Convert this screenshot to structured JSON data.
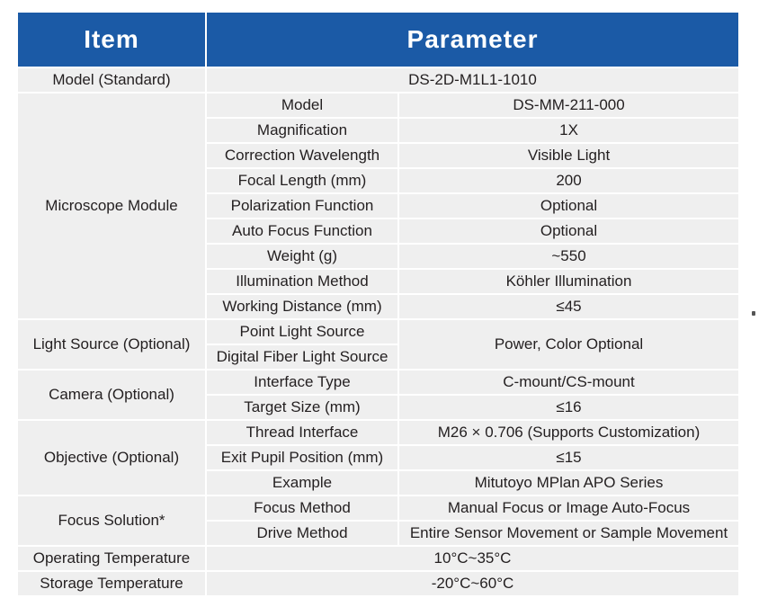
{
  "header": {
    "item": "Item",
    "parameter": "Parameter"
  },
  "rows": {
    "model_standard": {
      "label": "Model (Standard)",
      "value": "DS-2D-M1L1-1010"
    },
    "microscope": {
      "label": "Microscope Module",
      "items": [
        {
          "name": "Model",
          "value": "DS-MM-211-000"
        },
        {
          "name": "Magnification",
          "value": "1X"
        },
        {
          "name": "Correction Wavelength",
          "value": "Visible Light"
        },
        {
          "name": "Focal Length (mm)",
          "value": "200"
        },
        {
          "name": "Polarization Function",
          "value": "Optional"
        },
        {
          "name": "Auto Focus Function",
          "value": "Optional"
        },
        {
          "name": "Weight (g)",
          "value": "~550"
        },
        {
          "name": "Illumination Method",
          "value": "Köhler Illumination"
        },
        {
          "name": "Working Distance (mm)",
          "value": "≤45"
        }
      ]
    },
    "light_source": {
      "label": "Light Source (Optional)",
      "items": [
        {
          "name": "Point Light Source"
        },
        {
          "name": "Digital Fiber Light Source"
        }
      ],
      "value": "Power, Color Optional"
    },
    "camera": {
      "label": "Camera (Optional)",
      "items": [
        {
          "name": "Interface Type",
          "value": "C-mount/CS-mount"
        },
        {
          "name": "Target Size (mm)",
          "value": "≤16"
        }
      ]
    },
    "objective": {
      "label": "Objective (Optional)",
      "items": [
        {
          "name": "Thread Interface",
          "value": "M26 × 0.706 (Supports Customization)"
        },
        {
          "name": "Exit Pupil Position (mm)",
          "value": "≤15"
        },
        {
          "name": "Example",
          "value": "Mitutoyo MPlan APO Series"
        }
      ]
    },
    "focus": {
      "label": "Focus Solution*",
      "items": [
        {
          "name": "Focus Method",
          "value": "Manual Focus or Image Auto-Focus"
        },
        {
          "name": "Drive Method",
          "value": "Entire Sensor Movement or Sample Movement"
        }
      ]
    },
    "operating_temp": {
      "label": "Operating Temperature",
      "value": "10°C~35°C"
    },
    "storage_temp": {
      "label": "Storage Temperature",
      "value": "-20°C~60°C"
    }
  }
}
